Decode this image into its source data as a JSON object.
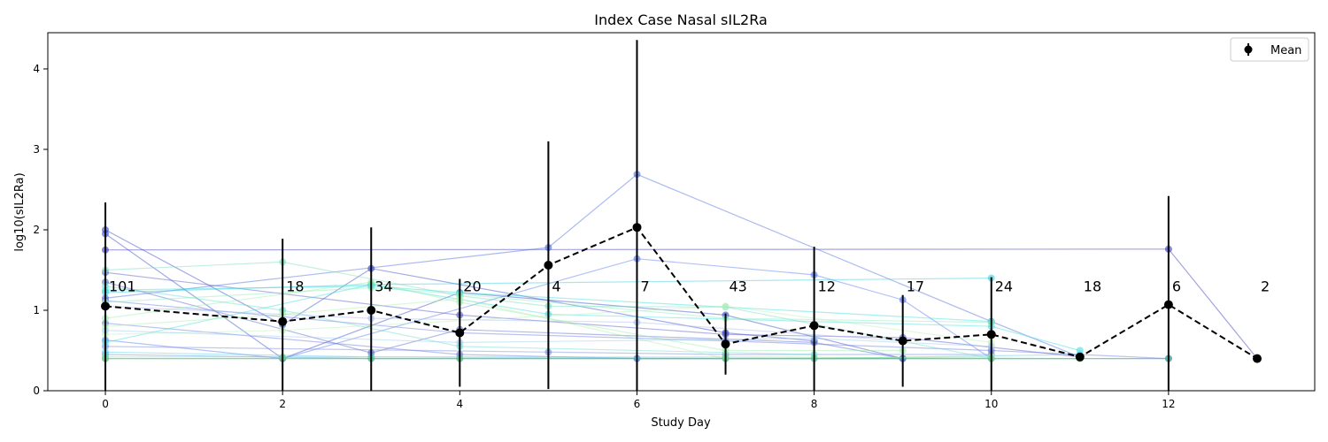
{
  "chart_data": {
    "type": "line",
    "title": "Index Case Nasal sIL2Ra",
    "xlabel": "Study Day",
    "ylabel": "log10(sIL2Ra)",
    "xlim": [
      -0.65,
      13.65
    ],
    "ylim": [
      0,
      4.45
    ],
    "x_ticks": [
      0,
      2,
      4,
      6,
      8,
      10,
      12
    ],
    "y_ticks": [
      0,
      1,
      2,
      3,
      4
    ],
    "grid": false,
    "legend": {
      "position": "top-right",
      "entries": [
        "Mean"
      ]
    },
    "mean_series": {
      "name": "Mean",
      "color": "#000000",
      "points": [
        {
          "x": 0,
          "y": 1.05,
          "err": 1.29
        },
        {
          "x": 2,
          "y": 0.86,
          "err": 1.03
        },
        {
          "x": 3,
          "y": 1.0,
          "err": 1.03
        },
        {
          "x": 4,
          "y": 0.72,
          "err": 0.67
        },
        {
          "x": 5,
          "y": 1.56,
          "err": 1.54
        },
        {
          "x": 6,
          "y": 2.03,
          "err": 2.33
        },
        {
          "x": 7,
          "y": 0.58,
          "err": 0.38
        },
        {
          "x": 8,
          "y": 0.81,
          "err": 0.98
        },
        {
          "x": 9,
          "y": 0.62,
          "err": 0.57
        },
        {
          "x": 10,
          "y": 0.7,
          "err": 0.71
        },
        {
          "x": 11,
          "y": 0.42,
          "err": 0.0
        },
        {
          "x": 12,
          "y": 1.07,
          "err": 1.35
        },
        {
          "x": 13,
          "y": 0.4,
          "err": 0.0
        }
      ]
    },
    "counts": [
      {
        "x": 0,
        "label": "101"
      },
      {
        "x": 2,
        "label": "18"
      },
      {
        "x": 3,
        "label": "34"
      },
      {
        "x": 4,
        "label": "20"
      },
      {
        "x": 5,
        "label": "4"
      },
      {
        "x": 6,
        "label": "7"
      },
      {
        "x": 7,
        "label": "43"
      },
      {
        "x": 8,
        "label": "12"
      },
      {
        "x": 9,
        "label": "17"
      },
      {
        "x": 10,
        "label": "24"
      },
      {
        "x": 11,
        "label": "18"
      },
      {
        "x": 12,
        "label": "6"
      },
      {
        "x": 13,
        "label": "2"
      }
    ],
    "count_label_y": 1.3,
    "subjects": [
      {
        "color": "#3333bb",
        "points": [
          [
            0,
            1.75
          ],
          [
            12,
            1.76
          ],
          [
            13,
            0.4
          ]
        ]
      },
      {
        "color": "#4466dd",
        "points": [
          [
            0,
            1.15
          ],
          [
            5,
            1.78
          ],
          [
            6,
            2.69
          ],
          [
            10,
            0.86
          ],
          [
            11,
            0.42
          ]
        ]
      },
      {
        "color": "#5577ee",
        "points": [
          [
            0,
            0.63
          ],
          [
            2,
            0.4
          ],
          [
            6,
            1.64
          ],
          [
            8,
            1.44
          ],
          [
            9,
            1.13
          ],
          [
            10,
            0.4
          ]
        ]
      },
      {
        "color": "#3344cc",
        "points": [
          [
            0,
            2.0
          ],
          [
            2,
            0.82
          ],
          [
            3,
            1.52
          ],
          [
            7,
            0.72
          ],
          [
            8,
            0.62
          ]
        ]
      },
      {
        "color": "#3344cc",
        "points": [
          [
            0,
            1.95
          ],
          [
            2,
            0.4
          ],
          [
            4,
            1.22
          ],
          [
            7,
            0.94
          ],
          [
            9,
            0.4
          ]
        ]
      },
      {
        "color": "#5555cc",
        "points": [
          [
            0,
            1.47
          ],
          [
            4,
            0.94
          ],
          [
            7,
            0.7
          ],
          [
            9,
            0.66
          ],
          [
            11,
            0.42
          ]
        ]
      },
      {
        "color": "#5566cc",
        "points": [
          [
            0,
            1.35
          ],
          [
            3,
            0.47
          ],
          [
            4,
            0.76
          ],
          [
            8,
            0.6
          ],
          [
            9,
            0.4
          ]
        ]
      },
      {
        "color": "#6677dd",
        "points": [
          [
            0,
            1.12
          ],
          [
            4,
            0.72
          ],
          [
            7,
            0.62
          ],
          [
            10,
            0.5
          ],
          [
            12,
            0.4
          ]
        ]
      },
      {
        "color": "#6677dd",
        "points": [
          [
            0,
            0.84
          ],
          [
            4,
            0.45
          ],
          [
            6,
            0.4
          ],
          [
            9,
            0.4
          ]
        ]
      },
      {
        "color": "#7788dd",
        "points": [
          [
            0,
            0.55
          ],
          [
            5,
            0.48
          ],
          [
            7,
            0.45
          ],
          [
            10,
            0.45
          ]
        ]
      },
      {
        "color": "#5599dd",
        "points": [
          [
            0,
            0.45
          ],
          [
            3,
            0.4
          ],
          [
            6,
            0.4
          ],
          [
            9,
            0.4
          ],
          [
            12,
            0.4
          ]
        ]
      },
      {
        "color": "#33ccdd",
        "points": [
          [
            0,
            1.22
          ],
          [
            3,
            1.32
          ],
          [
            10,
            1.4
          ]
        ]
      },
      {
        "color": "#33dddd",
        "points": [
          [
            0,
            1.25
          ],
          [
            3,
            1.3
          ],
          [
            4,
            1.22
          ],
          [
            10,
            0.86
          ]
        ]
      },
      {
        "color": "#44dddd",
        "points": [
          [
            0,
            0.6
          ],
          [
            3,
            1.32
          ],
          [
            5,
            0.95
          ],
          [
            10,
            0.8
          ],
          [
            11,
            0.5
          ]
        ]
      },
      {
        "color": "#55ccee",
        "points": [
          [
            0,
            0.48
          ],
          [
            3,
            0.42
          ],
          [
            8,
            0.4
          ],
          [
            11,
            0.45
          ]
        ]
      },
      {
        "color": "#66ddcc",
        "points": [
          [
            0,
            1.3
          ],
          [
            2,
            1.0
          ],
          [
            4,
            0.55
          ],
          [
            8,
            0.45
          ]
        ]
      },
      {
        "color": "#77ddbb",
        "points": [
          [
            0,
            1.5
          ],
          [
            2,
            1.6
          ],
          [
            4,
            1.18
          ],
          [
            5,
            1.05
          ],
          [
            7,
            1.04
          ],
          [
            10,
            0.4
          ]
        ]
      },
      {
        "color": "#88eebb",
        "points": [
          [
            0,
            1.1
          ],
          [
            3,
            1.28
          ],
          [
            4,
            1.2
          ],
          [
            7,
            0.9
          ],
          [
            10,
            0.85
          ]
        ]
      },
      {
        "color": "#99eeaa",
        "points": [
          [
            0,
            0.9
          ],
          [
            3,
            1.35
          ],
          [
            4,
            1.1
          ],
          [
            7,
            0.5
          ],
          [
            9,
            0.5
          ]
        ]
      },
      {
        "color": "#aaf0aa",
        "points": [
          [
            0,
            0.8
          ],
          [
            2,
            0.95
          ],
          [
            4,
            1.14
          ],
          [
            7,
            0.4
          ],
          [
            10,
            0.42
          ]
        ]
      },
      {
        "color": "#66cc88",
        "points": [
          [
            0,
            0.4
          ],
          [
            2,
            0.4
          ],
          [
            3,
            0.4
          ],
          [
            4,
            0.4
          ],
          [
            7,
            0.4
          ],
          [
            8,
            0.4
          ],
          [
            10,
            0.4
          ],
          [
            11,
            0.4
          ]
        ]
      },
      {
        "color": "#55bb88",
        "points": [
          [
            0,
            0.4
          ],
          [
            4,
            0.4
          ],
          [
            7,
            0.4
          ],
          [
            12,
            0.4
          ]
        ]
      },
      {
        "color": "#77dd99",
        "points": [
          [
            0,
            0.42
          ],
          [
            2,
            0.42
          ],
          [
            7,
            0.42
          ],
          [
            11,
            0.4
          ]
        ]
      },
      {
        "color": "#bbf0bb",
        "points": [
          [
            0,
            0.7
          ],
          [
            2,
            0.75
          ],
          [
            7,
            1.05
          ],
          [
            10,
            0.6
          ]
        ]
      },
      {
        "color": "#99ccee",
        "points": [
          [
            0,
            0.75
          ],
          [
            4,
            0.6
          ],
          [
            8,
            0.65
          ],
          [
            10,
            0.55
          ]
        ]
      },
      {
        "color": "#aabbee",
        "points": [
          [
            0,
            1.05
          ],
          [
            3,
            0.9
          ],
          [
            6,
            0.85
          ],
          [
            9,
            0.62
          ]
        ]
      }
    ]
  }
}
